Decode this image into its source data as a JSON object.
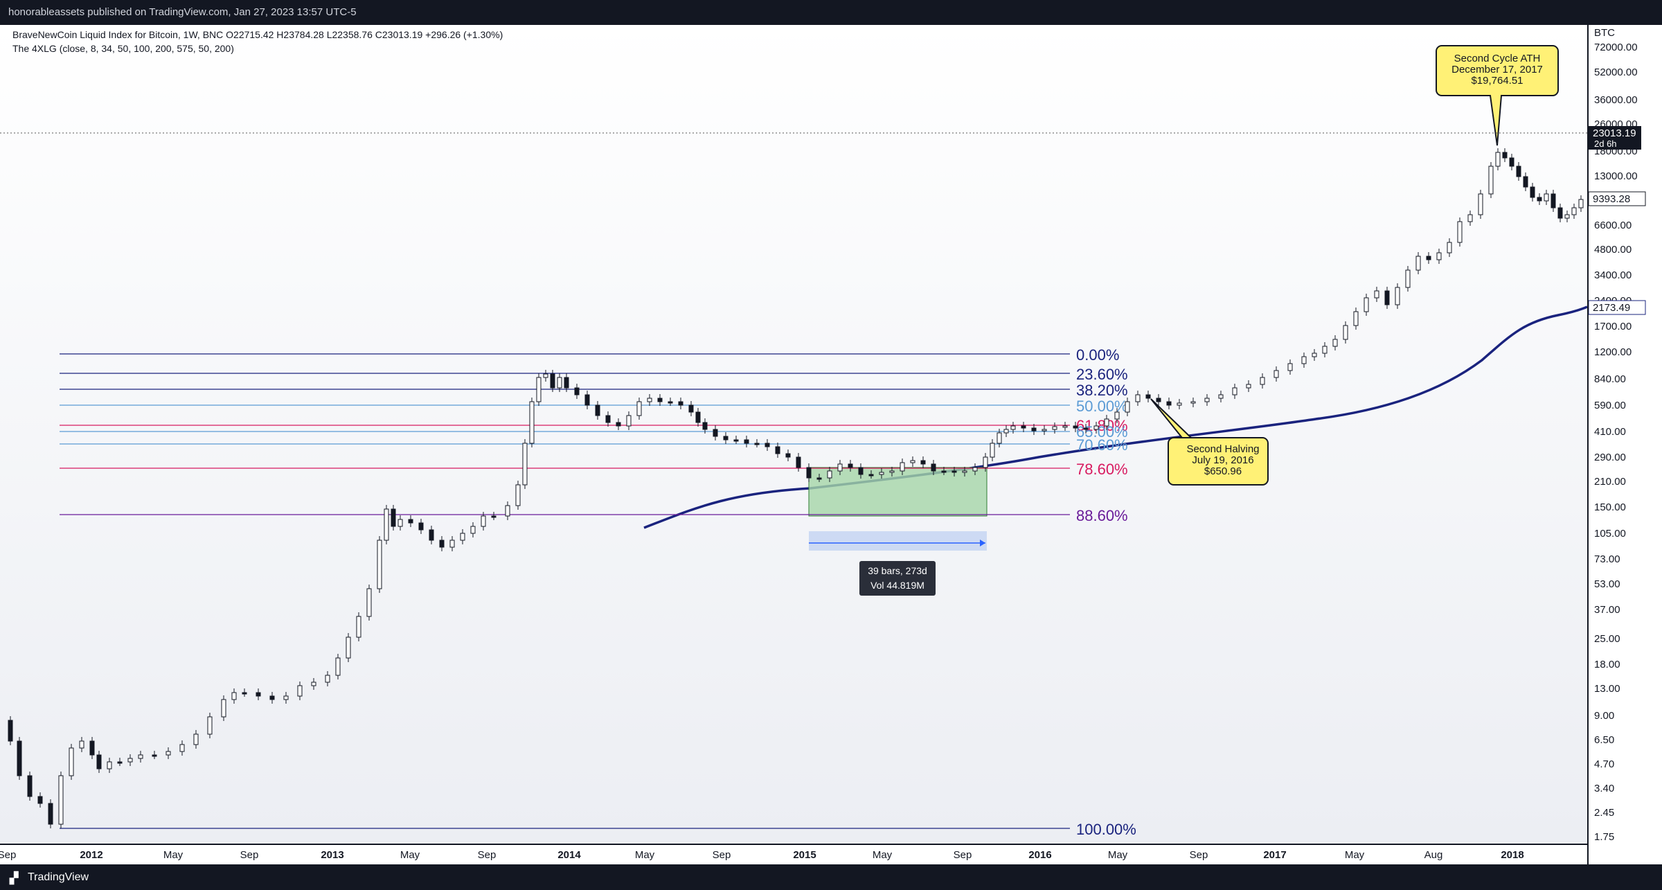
{
  "header": {
    "published": "honorableassets published on TradingView.com, Jan 27, 2023 13:57 UTC-5"
  },
  "legend": {
    "symbol_line": "BraveNewCoin Liquid Index for Bitcoin, 1W, BNC  O22715.42  H23784.28  L22358.76  C23013.19  +296.26 (+1.30%)",
    "indicator_line": "The 4XLG (close, 8, 34, 50, 100, 200, 575, 50, 200)"
  },
  "price_scale": {
    "currency": "BTC",
    "ticks": [
      "72000.00",
      "52000.00",
      "36000.00",
      "26000.00",
      "18000.00",
      "13000.00",
      "6600.00",
      "4800.00",
      "3400.00",
      "2400.00",
      "1700.00",
      "1200.00",
      "840.00",
      "590.00",
      "410.00",
      "290.00",
      "210.00",
      "150.00",
      "105.00",
      "73.00",
      "53.00",
      "37.00",
      "25.00",
      "18.00",
      "13.00",
      "9.00",
      "6.50",
      "4.70",
      "3.40",
      "2.45",
      "1.75"
    ],
    "last_price": "23013.19",
    "countdown": "2d 6h",
    "price_label_2": "9393.28",
    "ma_label": "2173.49"
  },
  "time_scale": {
    "ticks": [
      {
        "label": "Sep",
        "bold": false
      },
      {
        "label": "2012",
        "bold": true
      },
      {
        "label": "May",
        "bold": false
      },
      {
        "label": "Sep",
        "bold": false
      },
      {
        "label": "2013",
        "bold": true
      },
      {
        "label": "May",
        "bold": false
      },
      {
        "label": "Sep",
        "bold": false
      },
      {
        "label": "2014",
        "bold": true
      },
      {
        "label": "May",
        "bold": false
      },
      {
        "label": "Sep",
        "bold": false
      },
      {
        "label": "2015",
        "bold": true
      },
      {
        "label": "May",
        "bold": false
      },
      {
        "label": "Sep",
        "bold": false
      },
      {
        "label": "2016",
        "bold": true
      },
      {
        "label": "May",
        "bold": false
      },
      {
        "label": "Sep",
        "bold": false
      },
      {
        "label": "2017",
        "bold": true
      },
      {
        "label": "May",
        "bold": false
      },
      {
        "label": "Aug",
        "bold": false
      },
      {
        "label": "2018",
        "bold": true
      }
    ]
  },
  "fib_levels": [
    {
      "label": "0.00%",
      "color": "#1a237e"
    },
    {
      "label": "23.60%",
      "color": "#1a237e"
    },
    {
      "label": "38.20%",
      "color": "#1a237e"
    },
    {
      "label": "50.00%",
      "color": "#5b9bd5"
    },
    {
      "label": "61.80%",
      "color": "#d81b60"
    },
    {
      "label": "65.00%",
      "color": "#5b9bd5"
    },
    {
      "label": "70.60%",
      "color": "#5b9bd5"
    },
    {
      "label": "78.60%",
      "color": "#d81b60"
    },
    {
      "label": "88.60%",
      "color": "#6a1b9a"
    },
    {
      "label": "100.00%",
      "color": "#1a237e"
    }
  ],
  "measure": {
    "line1": "39 bars, 273d",
    "line2": "Vol 44.819M"
  },
  "callouts": [
    {
      "lines": [
        "Second Cycle ATH",
        "December 17, 2017",
        "$19,764.51"
      ]
    },
    {
      "lines": [
        "Second Halving",
        "July 19, 2016",
        "$650.96"
      ]
    }
  ],
  "colors": {
    "callout_fill": "#fff176",
    "measure_zone": "#a5d6a7",
    "ma_line": "#1a237e",
    "candle_up": "#ffffff",
    "candle_down": "#131722"
  },
  "footer": {
    "brand": "TradingView"
  }
}
